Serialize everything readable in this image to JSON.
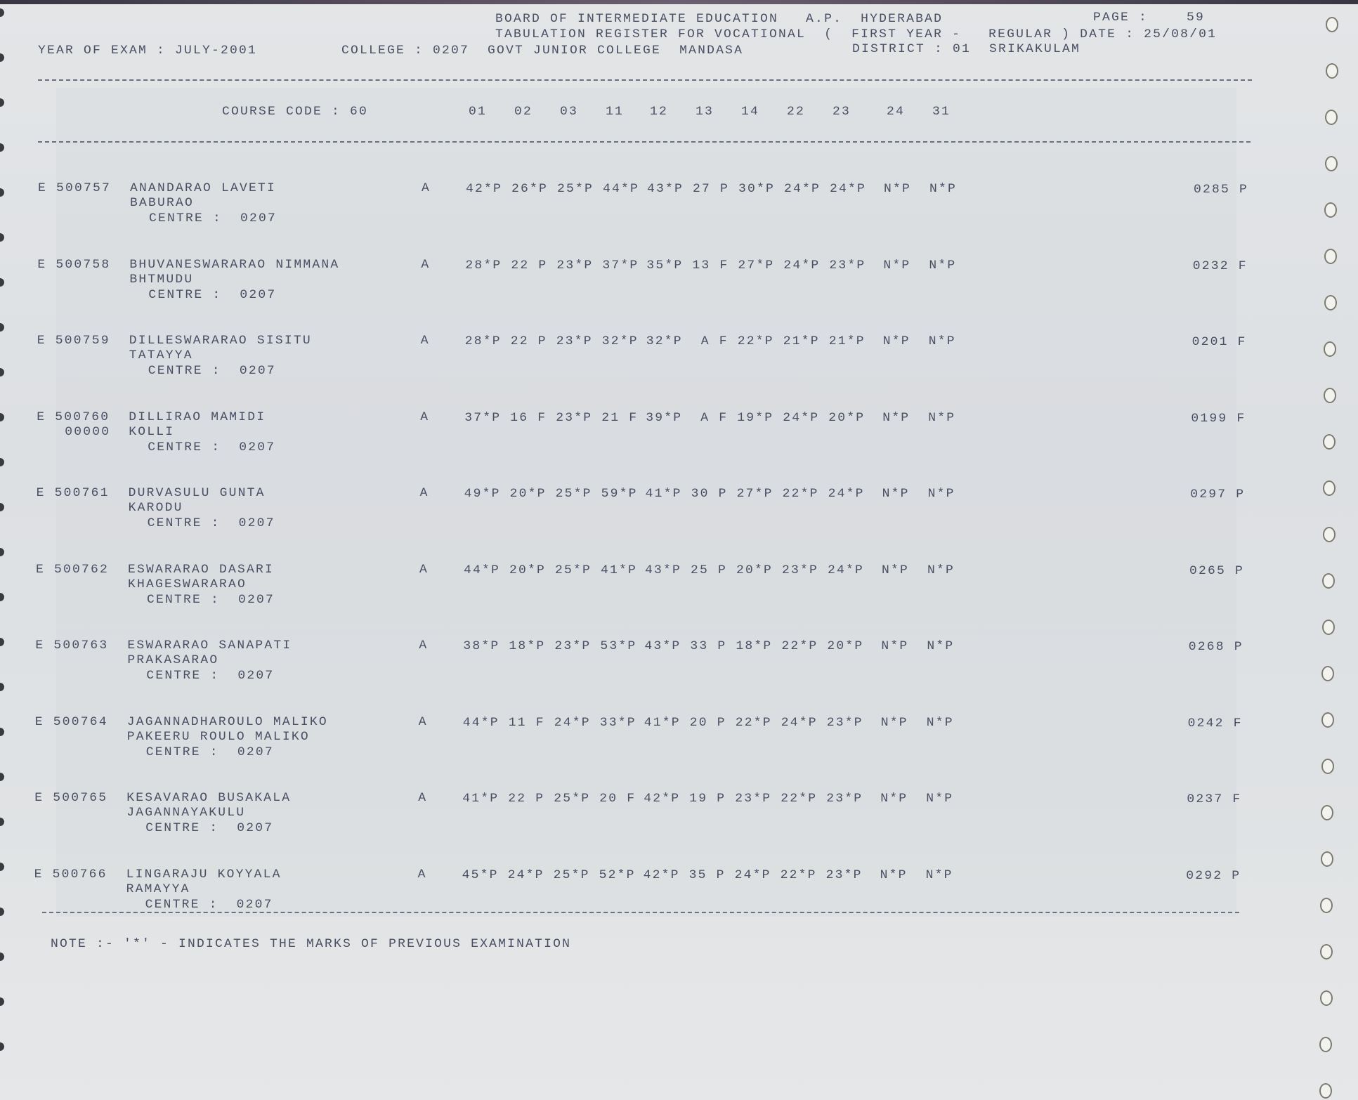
{
  "header": {
    "line1": "BOARD OF INTERMEDIATE EDUCATION   A.P.  HYDERABAD",
    "page_label": "PAGE :",
    "page_number": "59",
    "line2": "TABULATION REGISTER FOR VOCATIONAL  (  FIRST YEAR -   REGULAR ) DATE : 25/08/01",
    "year_of_exam": "YEAR OF EXAM : JULY-2001",
    "college": "COLLEGE : 0207  GOVT JUNIOR COLLEGE  MANDASA",
    "district": "DISTRICT : 01  SRIKAKULAM"
  },
  "course": {
    "label": "COURSE CODE : 60",
    "subject_codes": [
      "01",
      "02",
      "03",
      "11",
      "12",
      "13",
      "14",
      "22",
      "23",
      "24",
      "31"
    ]
  },
  "students": [
    {
      "id": "E 500757",
      "name1": "ANANDARAO LAVETI",
      "name2": "BABURAO",
      "id2": "",
      "centre": "CENTRE :  0207",
      "grade": "A",
      "marks": [
        "42*P",
        "26*P",
        "25*P",
        "44*P",
        "43*P",
        "27 P",
        "30*P",
        "24*P",
        "24*P",
        "N*P",
        "N*P"
      ],
      "total": "0285 P"
    },
    {
      "id": "E 500758",
      "name1": "BHUVANESWARARAO NIMMANA",
      "name2": "BHTMUDU",
      "id2": "",
      "centre": "CENTRE :  0207",
      "grade": "A",
      "marks": [
        "28*P",
        "22 P",
        "23*P",
        "37*P",
        "35*P",
        "13 F",
        "27*P",
        "24*P",
        "23*P",
        "N*P",
        "N*P"
      ],
      "total": "0232 F"
    },
    {
      "id": "E 500759",
      "name1": "DILLESWARARAO SISITU",
      "name2": "TATAYYA",
      "id2": "",
      "centre": "CENTRE :  0207",
      "grade": "A",
      "marks": [
        "28*P",
        "22 P",
        "23*P",
        "32*P",
        "32*P",
        " A F",
        "22*P",
        "21*P",
        "21*P",
        "N*P",
        "N*P"
      ],
      "total": "0201 F"
    },
    {
      "id": "E 500760",
      "name1": "DILLIRAO MAMIDI",
      "name2": "KOLLI",
      "id2": "00000",
      "centre": "CENTRE :  0207",
      "grade": "A",
      "marks": [
        "37*P",
        "16 F",
        "23*P",
        "21 F",
        "39*P",
        " A F",
        "19*P",
        "24*P",
        "20*P",
        "N*P",
        "N*P"
      ],
      "total": "0199 F"
    },
    {
      "id": "E 500761",
      "name1": "DURVASULU GUNTA",
      "name2": "KARODU",
      "id2": "",
      "centre": "CENTRE :  0207",
      "grade": "A",
      "marks": [
        "49*P",
        "20*P",
        "25*P",
        "59*P",
        "41*P",
        "30 P",
        "27*P",
        "22*P",
        "24*P",
        "N*P",
        "N*P"
      ],
      "total": "0297 P"
    },
    {
      "id": "E 500762",
      "name1": "ESWARARAO DASARI",
      "name2": "KHAGESWARARAO",
      "id2": "",
      "centre": "CENTRE :  0207",
      "grade": "A",
      "marks": [
        "44*P",
        "20*P",
        "25*P",
        "41*P",
        "43*P",
        "25 P",
        "20*P",
        "23*P",
        "24*P",
        "N*P",
        "N*P"
      ],
      "total": "0265 P"
    },
    {
      "id": "E 500763",
      "name1": "ESWARARAO SANAPATI",
      "name2": "PRAKASARAO",
      "id2": "",
      "centre": "CENTRE :  0207",
      "grade": "A",
      "marks": [
        "38*P",
        "18*P",
        "23*P",
        "53*P",
        "43*P",
        "33 P",
        "18*P",
        "22*P",
        "20*P",
        "N*P",
        "N*P"
      ],
      "total": "0268 P"
    },
    {
      "id": "E 500764",
      "name1": "JAGANNADHAROULO MALIKO",
      "name2": "PAKEERU ROULO MALIKO",
      "id2": "",
      "centre": "CENTRE :  0207",
      "grade": "A",
      "marks": [
        "44*P",
        "11 F",
        "24*P",
        "33*P",
        "41*P",
        "20 P",
        "22*P",
        "24*P",
        "23*P",
        "N*P",
        "N*P"
      ],
      "total": "0242 F"
    },
    {
      "id": "E 500765",
      "name1": "KESAVARAO BUSAKALA",
      "name2": "JAGANNAYAKULU",
      "id2": "",
      "centre": "CENTRE :  0207",
      "grade": "A",
      "marks": [
        "41*P",
        "22 P",
        "25*P",
        "20 F",
        "42*P",
        "19 P",
        "23*P",
        "22*P",
        "23*P",
        "N*P",
        "N*P"
      ],
      "total": "0237 F"
    },
    {
      "id": "E 500766",
      "name1": "LINGARAJU KOYYALA",
      "name2": "RAMAYYA",
      "id2": "",
      "centre": "CENTRE :  0207",
      "grade": "A",
      "marks": [
        "45*P",
        "24*P",
        "25*P",
        "52*P",
        "42*P",
        "35 P",
        "24*P",
        "22*P",
        "23*P",
        "N*P",
        "N*P"
      ],
      "total": "0292 P"
    }
  ],
  "note": "NOTE :- '*' - INDICATES THE MARKS OF PREVIOUS EXAMINATION"
}
